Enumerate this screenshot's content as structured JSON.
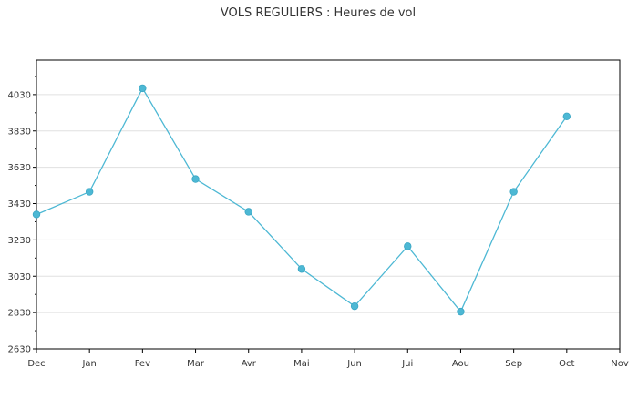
{
  "chart_data": {
    "type": "line",
    "title": "VOLS REGULIERS : Heures de vol",
    "xlabel": "",
    "ylabel": "",
    "categories": [
      "Dec",
      "Jan",
      "Fev",
      "Mar",
      "Avr",
      "Mai",
      "Jun",
      "Jui",
      "Aou",
      "Sep",
      "Oct",
      "Nov"
    ],
    "series": [
      {
        "values": [
          3370,
          3495,
          4065,
          3565,
          3385,
          3070,
          2865,
          3195,
          2835,
          3495,
          3910,
          null
        ]
      }
    ],
    "yticks": [
      2630,
      2830,
      3030,
      3230,
      3430,
      3630,
      3830,
      4030
    ],
    "ylim": [
      2630,
      4220
    ],
    "grid": true,
    "colors": {
      "line": "#4db8d4",
      "marker": "#4db8d4",
      "grid": "#e0e0e0",
      "axis": "#000000"
    }
  }
}
